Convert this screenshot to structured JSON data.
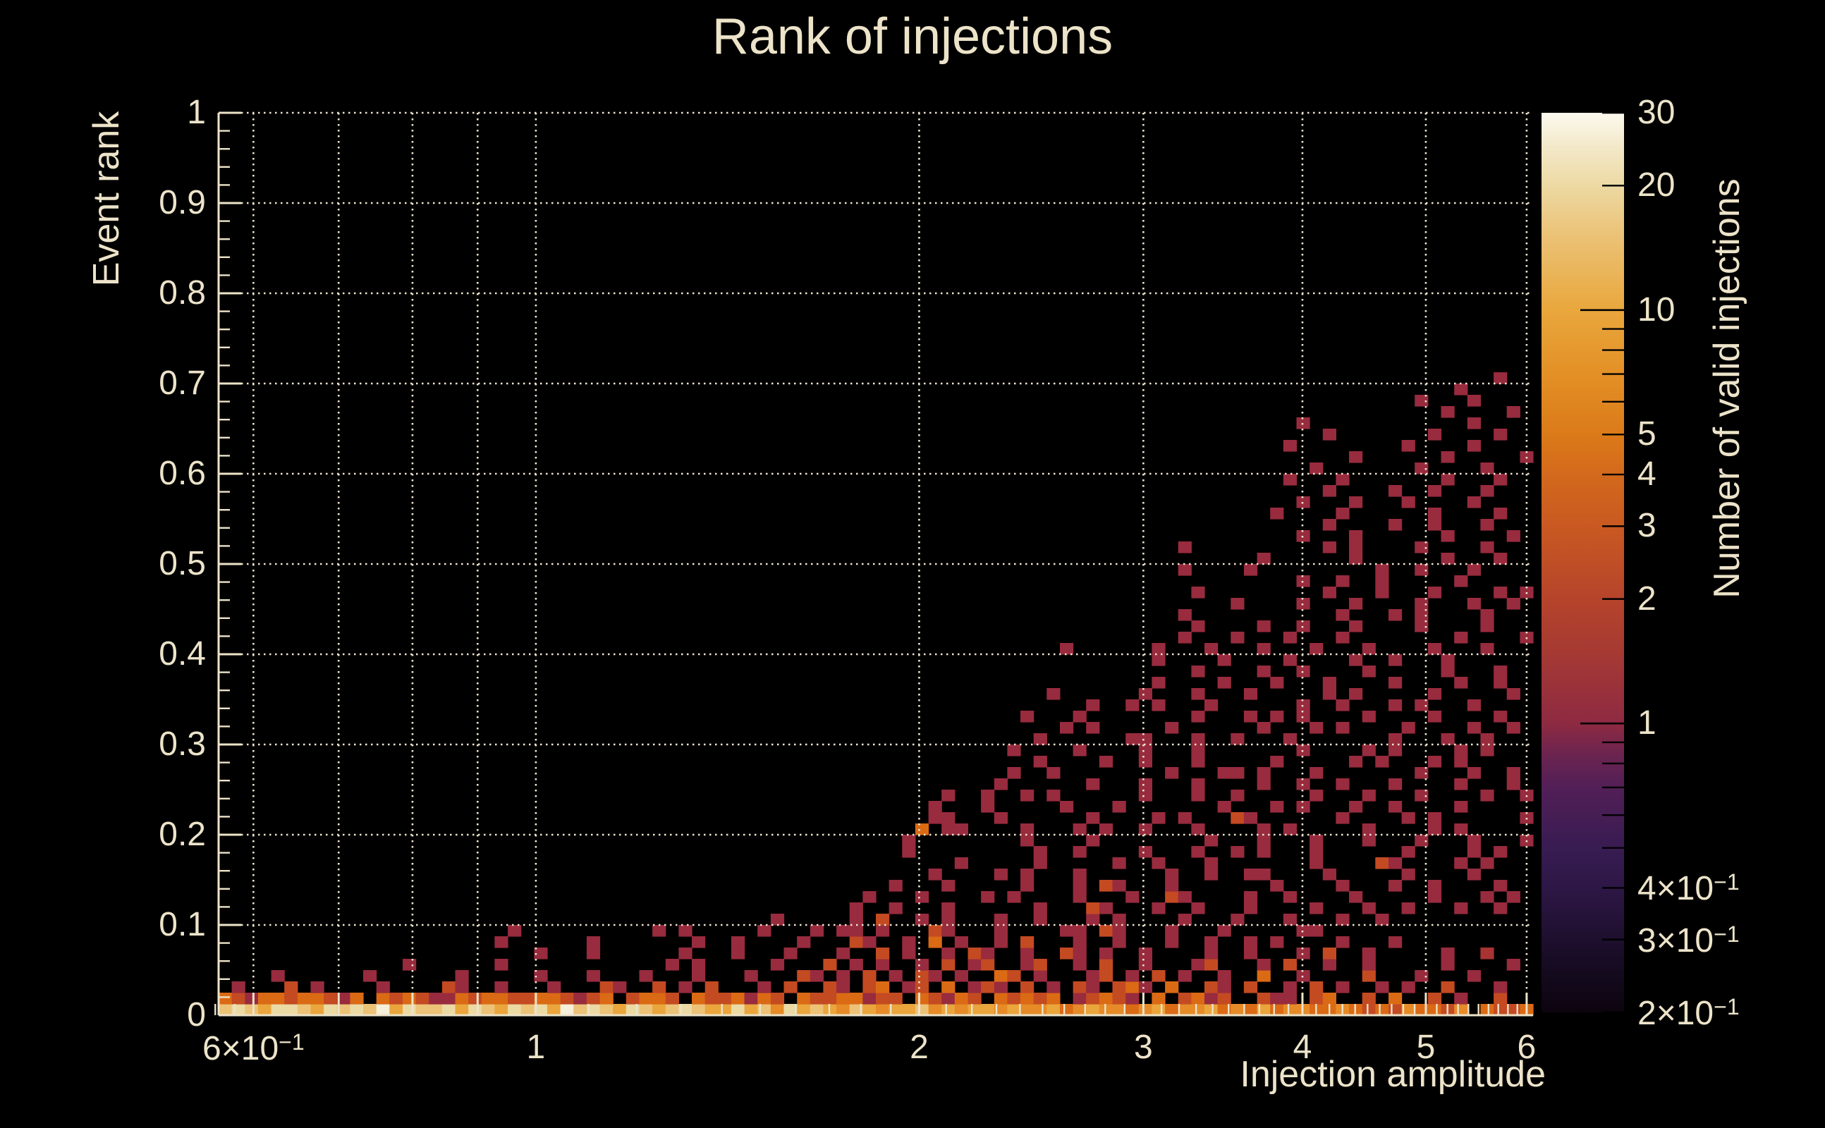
{
  "title": "Rank of injections",
  "colors": {
    "background": "#000000",
    "text": "#ece3c9",
    "frame": "#ece3c9",
    "grid": "#efe6cf",
    "colorbar_tick": "#000000"
  },
  "x_axis": {
    "title": "Injection amplitude",
    "scale": "log",
    "min": 0.5634,
    "max": 6.07,
    "major_ticks": [
      0.6,
      0.7,
      0.8,
      0.9,
      1,
      2,
      3,
      4,
      5,
      6
    ],
    "minor_ticks": [
      0.56,
      0.58,
      1.1,
      1.2,
      1.3,
      1.4,
      1.5,
      1.6,
      1.7,
      1.8,
      1.9,
      2.1,
      2.2,
      2.3,
      2.4,
      2.5,
      2.6,
      2.7,
      2.8,
      2.9,
      3.1,
      3.2,
      3.3,
      3.4,
      3.5,
      3.6,
      3.7,
      3.8,
      3.9,
      4.1,
      4.2,
      4.3,
      4.4,
      4.5,
      4.6,
      4.7,
      4.8,
      4.9,
      5.1,
      5.2,
      5.3,
      5.4,
      5.5,
      5.6,
      5.7,
      5.8,
      5.9
    ],
    "tick_labels": [
      {
        "value": 0.6,
        "base": "6×10",
        "exp": "−1"
      },
      {
        "value": 1,
        "base": "1",
        "exp": ""
      },
      {
        "value": 2,
        "base": "2",
        "exp": ""
      },
      {
        "value": 3,
        "base": "3",
        "exp": ""
      },
      {
        "value": 4,
        "base": "4",
        "exp": ""
      },
      {
        "value": 5,
        "base": "5",
        "exp": ""
      },
      {
        "value": 6,
        "base": "6",
        "exp": ""
      }
    ]
  },
  "y_axis": {
    "title": "Event rank",
    "scale": "linear",
    "min": 0,
    "max": 1,
    "major_ticks": [
      0,
      0.1,
      0.2,
      0.3,
      0.4,
      0.5,
      0.6,
      0.7,
      0.8,
      0.9,
      1
    ],
    "minor_tick_step": 0.02,
    "tick_labels": [
      "0",
      "0.1",
      "0.2",
      "0.3",
      "0.4",
      "0.5",
      "0.6",
      "0.7",
      "0.8",
      "0.9",
      "1"
    ]
  },
  "z_axis": {
    "title": "Number of valid injections",
    "scale": "log",
    "min": 0.2,
    "max": 30,
    "major_ticks": [
      1,
      10
    ],
    "minor_ticks": [
      0.2,
      0.3,
      0.4,
      0.5,
      0.6,
      0.7,
      0.8,
      0.9,
      2,
      3,
      4,
      5,
      6,
      7,
      8,
      9,
      20,
      30
    ],
    "tick_labels": [
      {
        "value": 30,
        "base": "30",
        "exp": ""
      },
      {
        "value": 20,
        "base": "20",
        "exp": ""
      },
      {
        "value": 10,
        "base": "10",
        "exp": ""
      },
      {
        "value": 5,
        "base": "5",
        "exp": ""
      },
      {
        "value": 4,
        "base": "4",
        "exp": ""
      },
      {
        "value": 3,
        "base": "3",
        "exp": ""
      },
      {
        "value": 2,
        "base": "2",
        "exp": ""
      },
      {
        "value": 1,
        "base": "1",
        "exp": ""
      },
      {
        "value": 0.4,
        "base": "4×10",
        "exp": "−1"
      },
      {
        "value": 0.3,
        "base": "3×10",
        "exp": "−1"
      },
      {
        "value": 0.2,
        "base": "2×10",
        "exp": "−1"
      }
    ],
    "gradient_stops": [
      {
        "f": 0.0,
        "color": "#0d040f"
      },
      {
        "f": 0.043,
        "color": "#140a1e"
      },
      {
        "f": 0.081,
        "color": "#1e0f2e"
      },
      {
        "f": 0.138,
        "color": "#2d1746"
      },
      {
        "f": 0.183,
        "color": "#381c52"
      },
      {
        "f": 0.25,
        "color": "#521f57"
      },
      {
        "f": 0.285,
        "color": "#6a2450"
      },
      {
        "f": 0.321,
        "color": "#8e2a42"
      },
      {
        "f": 0.402,
        "color": "#a63a33"
      },
      {
        "f": 0.46,
        "color": "#b6442b"
      },
      {
        "f": 0.54,
        "color": "#c95922"
      },
      {
        "f": 0.597,
        "color": "#d3691c"
      },
      {
        "f": 0.642,
        "color": "#db7a19"
      },
      {
        "f": 0.709,
        "color": "#e39026"
      },
      {
        "f": 0.78,
        "color": "#e9a73c"
      },
      {
        "f": 0.861,
        "color": "#ebc175"
      },
      {
        "f": 0.919,
        "color": "#edd9a3"
      },
      {
        "f": 0.963,
        "color": "#f3e9ca"
      },
      {
        "f": 1.0,
        "color": "#fcf9ef"
      }
    ]
  },
  "chart_data": {
    "type": "heatmap",
    "title": "Rank of injections",
    "xlabel": "Injection amplitude",
    "ylabel": "Event rank",
    "zlabel": "Number of valid injections",
    "x_range_log": [
      0.5634,
      6.07
    ],
    "y_range": [
      0,
      1
    ],
    "z_range_log": [
      0.2,
      30
    ],
    "n_cols": 100,
    "n_rows": 80,
    "grid_on": true,
    "legend_position": "right-colorbar",
    "palette": {
      "1": "#982b3e",
      "2": "#a93332",
      "3": "#c44a22",
      "4": "#db6a15",
      "5": "#e68b28",
      "6": "#eaa63c",
      "7": "#ecc277",
      "8": "#ecdaa4",
      "9": "#f6efd9"
    },
    "bucket_counts": {
      "1": 1,
      "2": 1.5,
      "3": 2.5,
      "4": 4,
      "5": 6,
      "6": 10,
      "7": 15,
      "8": 22,
      "9": 30
    },
    "rows_bottom_up": [
      "78768876878796877868768786978768767876686758676576566756566565564565545645564546455445434354435.4334",
      "43144344314.434311434433443134.3443.4334143.43344133.43143.43434.13431.4.3413..311.34..3.4..3.1..3...",
      ".1...3.1....1....31..1...1...31..3.1.3...1.3..31.34.13.4.131.3.1.31.341.4..31.3..1.3.1..1.1..3...1..",
      "....1......1......1.....1...1...1...1...1...31.1.3.1.31.1..43.1...13.1.3.1..1..4..1....3...1...1....",
      "..............1......1............1.1.....1...3.1.1..1.3.13..13..1.3..1...13...1.3..1..1.....1....1.",
      "........................1...1......1...1...1...1..3.1..1.31..1..31.1..1....1..1...1.3..1.....1..2.",
      ".....................1......1.......1..1....1...31..1.4.1..1.3...1..1...1..1..1.1....1...1...",
      "......................1..........1.1.....1...1.11.1...31...1....11.31...1...1.....11....",
      "..........................................1.....1.3..1.1...1..1...1.1....1...1...1...1..1....",
      "................................................1..1...1......1...31...1..1...1....1...1..1...1..1..",
      ".................................................1...1....1.1....1...1..31....1..1....1.....1...1.1.",
      "...................................................1...1.....1...1.31...1.......1....1...1..1....1",
      "......................................................1....1.1...1......1..1..11....1.....1....1..",
      "........................................................1.....1.....1..1...1.......1....31....1.1...",
      "....................................................1.........1..1....1...1..1.1...1......1....1.1",
      "....................................................1........1....1........1...1...1...1...1...1...1.",
      ".....................................................4.11....1...1.1..1...1....1.1.....1....1.1.....",
      "......................................................11...1......1....1.1...31......1....1.1......1..",
      "......................................................1...1.....1...1.......1...1.1...1..1....1.....1.",
      ".......................................................1..1..1.1......1...1..1.....1...1...1....1..1..",
      "...........................................................1......1...1...1....1..1..1...1....1...1....",
      "............................................................1..1........1...11.1...1.......1...1..1",
      "..............................................................1....1..1...1.....1.....1.1...1.1...",
      "............................................................1....1....1...1.......1....1.1....1.1.",
      "..............................................................1......11...1..1...1.......1...1..1...",
      "................................................................1.1.....1......1...1.1....1....1..1.",
      ".............................................................1...1........1...1.1.1....1....1....1..",
      "..................................................................1..1.1...1......1..1...1.1...1....",
      "...............................................................1......1...1...1.....1.1.....1.....1.",
      ".......................................................................1....1...1...1....1....1..1..",
      "..........................................................................1....1..1....1.....1...1..1",
      ".......................................................................1....1....1....1..1...1.....",
      "................................................................1......1...1...1...1...1....1...1...",
      ".........................................................................1...1...1...1........1....1.",
      "..........................................................................1....1..1...1....1....1...",
      ".........................................................................1...........1...1.1....1...1.",
      ".............................................................................1....1...1....1...1..1..",
      "..........................................................................1.........1...1...1....1.1",
      "..................................................................................1..1..1.....1....",
      ".........................................................................1....1.........1..1...1....1.",
      "...............................................................................1......1......1...1...",
      ".........................................................................1..........1.1....1....1...1",
      "..................................................................................1...1......1....1..",
      "....................................................................................1....1..1...1....",
      "................................................................................1....1......1....1.",
      "..................................................................................1...1...1....1....",
      "....................................................................................1....1..1...1...",
      ".................................................................................1...1.......1...1.",
      "...................................................................................1.......1....1...",
      "......................................................................................1......1.....1",
      ".................................................................................1........1....1....",
      "....................................................................................1.......1....1..",
      "..................................................................................1............1....",
      ".............................................................................................1....1.",
      "...........................................................................................1...1....",
      "..............................................................................................1.....",
      ".................................................................................................1.."
    ]
  }
}
